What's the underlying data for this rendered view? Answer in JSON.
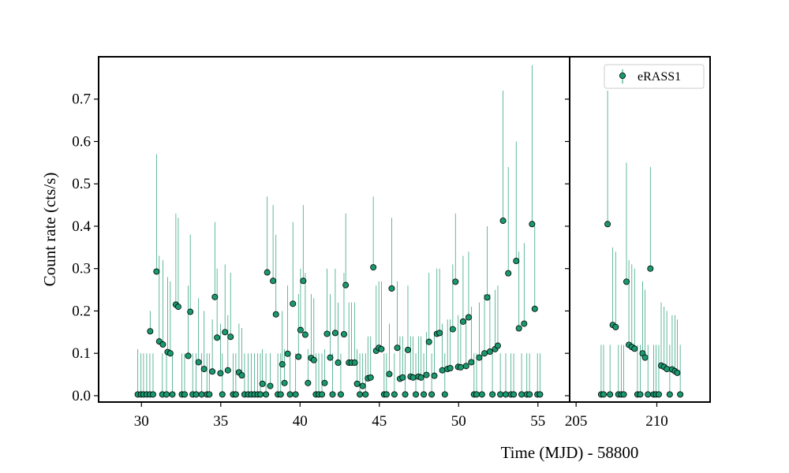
{
  "chart_data": {
    "type": "scatter",
    "ylabel": "Count rate (cts/s)",
    "xlabel": "Time (MJD) - 58800",
    "ylim": [
      -0.015,
      0.8
    ],
    "yticks": [
      0.0,
      0.1,
      0.2,
      0.3,
      0.4,
      0.5,
      0.6,
      0.7
    ],
    "ytick_labels": [
      "0.0",
      "0.1",
      "0.2",
      "0.3",
      "0.4",
      "0.5",
      "0.6",
      "0.7"
    ],
    "legend": {
      "label": "eRASS1",
      "position": "top-right"
    },
    "colors": {
      "marker": "#1a9870",
      "errorbar": "#1a9870",
      "marker_edge": "#000000"
    },
    "panels": [
      {
        "name": "left",
        "xlim": [
          27.3,
          57.0
        ],
        "xticks": [
          30,
          35,
          40,
          45,
          50,
          55
        ],
        "xtick_labels": [
          "30",
          "35",
          "40",
          "45",
          "50",
          "55"
        ],
        "series": [
          {
            "name": "eRASS1",
            "points": [
              [
                29.77,
                0.003,
                0.11
              ],
              [
                29.97,
                0.003,
                0.1
              ],
              [
                30.13,
                0.003,
                0.1
              ],
              [
                30.33,
                0.003,
                0.1
              ],
              [
                30.53,
                0.003,
                0.1
              ],
              [
                30.55,
                0.152,
                0.2
              ],
              [
                30.73,
                0.003,
                0.1
              ],
              [
                30.95,
                0.293,
                0.57
              ],
              [
                31.12,
                0.128,
                0.33
              ],
              [
                31.32,
                0.003,
                0.1
              ],
              [
                31.35,
                0.121,
                0.32
              ],
              [
                31.58,
                0.003,
                0.1
              ],
              [
                31.65,
                0.103,
                0.28
              ],
              [
                31.82,
                0.1,
                0.27
              ],
              [
                31.95,
                0.003,
                0.1
              ],
              [
                32.17,
                0.215,
                0.43
              ],
              [
                32.32,
                0.21,
                0.42
              ],
              [
                32.55,
                0.003,
                0.1
              ],
              [
                32.72,
                0.003,
                0.1
              ],
              [
                32.95,
                0.094,
                0.26
              ],
              [
                33.08,
                0.198,
                0.38
              ],
              [
                33.23,
                0.003,
                0.1
              ],
              [
                33.45,
                0.003,
                0.1
              ],
              [
                33.6,
                0.079,
                0.23
              ],
              [
                33.8,
                0.003,
                0.1
              ],
              [
                33.95,
                0.063,
                0.2
              ],
              [
                34.13,
                0.003,
                0.1
              ],
              [
                34.28,
                0.003,
                0.1
              ],
              [
                34.47,
                0.057,
                0.18
              ],
              [
                34.63,
                0.233,
                0.41
              ],
              [
                34.77,
                0.137,
                0.3
              ],
              [
                34.98,
                0.053,
                0.17
              ],
              [
                35.1,
                0.003,
                0.1
              ],
              [
                35.27,
                0.15,
                0.31
              ],
              [
                35.45,
                0.06,
                0.19
              ],
              [
                35.62,
                0.139,
                0.29
              ],
              [
                35.78,
                0.003,
                0.1
              ],
              [
                35.95,
                0.003,
                0.1
              ],
              [
                36.15,
                0.055,
                0.17
              ],
              [
                36.33,
                0.048,
                0.16
              ],
              [
                36.5,
                0.003,
                0.1
              ],
              [
                36.73,
                0.003,
                0.1
              ],
              [
                36.93,
                0.003,
                0.1
              ],
              [
                37.13,
                0.003,
                0.1
              ],
              [
                37.33,
                0.003,
                0.1
              ],
              [
                37.5,
                0.003,
                0.1
              ],
              [
                37.63,
                0.028,
                0.11
              ],
              [
                37.85,
                0.003,
                0.1
              ],
              [
                37.93,
                0.291,
                0.47
              ],
              [
                38.12,
                0.023,
                0.1
              ],
              [
                38.3,
                0.271,
                0.45
              ],
              [
                38.48,
                0.192,
                0.38
              ],
              [
                38.6,
                0.003,
                0.1
              ],
              [
                38.78,
                0.003,
                0.1
              ],
              [
                38.88,
                0.074,
                0.2
              ],
              [
                39.02,
                0.03,
                0.11
              ],
              [
                39.22,
                0.099,
                0.26
              ],
              [
                39.37,
                0.003,
                0.1
              ],
              [
                39.55,
                0.217,
                0.41
              ],
              [
                39.72,
                0.003,
                0.1
              ],
              [
                39.9,
                0.092,
                0.24
              ],
              [
                40.03,
                0.155,
                0.3
              ],
              [
                40.2,
                0.271,
                0.45
              ],
              [
                40.33,
                0.144,
                0.29
              ],
              [
                40.5,
                0.03,
                0.11
              ],
              [
                40.7,
                0.089,
                0.24
              ],
              [
                40.87,
                0.084,
                0.23
              ],
              [
                41.0,
                0.003,
                0.1
              ],
              [
                41.18,
                0.003,
                0.1
              ],
              [
                41.38,
                0.003,
                0.1
              ],
              [
                41.55,
                0.03,
                0.11
              ],
              [
                41.7,
                0.146,
                0.3
              ],
              [
                41.9,
                0.09,
                0.24
              ],
              [
                42.05,
                0.003,
                0.1
              ],
              [
                42.22,
                0.148,
                0.3
              ],
              [
                42.4,
                0.078,
                0.22
              ],
              [
                42.57,
                0.003,
                0.1
              ],
              [
                42.77,
                0.145,
                0.29
              ],
              [
                42.88,
                0.261,
                0.43
              ],
              [
                43.08,
                0.078,
                0.22
              ],
              [
                43.25,
                0.078,
                0.22
              ],
              [
                43.45,
                0.078,
                0.22
              ],
              [
                43.6,
                0.028,
                0.11
              ],
              [
                43.77,
                0.003,
                0.1
              ],
              [
                43.95,
                0.023,
                0.1
              ],
              [
                44.13,
                0.003,
                0.1
              ],
              [
                44.28,
                0.041,
                0.14
              ],
              [
                44.45,
                0.043,
                0.14
              ],
              [
                44.62,
                0.303,
                0.47
              ],
              [
                44.8,
                0.106,
                0.26
              ],
              [
                44.97,
                0.113,
                0.27
              ],
              [
                45.13,
                0.11,
                0.27
              ],
              [
                45.3,
                0.003,
                0.1
              ],
              [
                45.45,
                0.003,
                0.1
              ],
              [
                45.63,
                0.051,
                0.17
              ],
              [
                45.78,
                0.253,
                0.42
              ],
              [
                45.95,
                0.003,
                0.1
              ],
              [
                46.13,
                0.113,
                0.27
              ],
              [
                46.3,
                0.04,
                0.14
              ],
              [
                46.47,
                0.043,
                0.14
              ],
              [
                46.63,
                0.003,
                0.1
              ],
              [
                46.8,
                0.108,
                0.26
              ],
              [
                46.97,
                0.045,
                0.14
              ],
              [
                47.13,
                0.043,
                0.14
              ],
              [
                47.3,
                0.003,
                0.1
              ],
              [
                47.47,
                0.045,
                0.14
              ],
              [
                47.63,
                0.043,
                0.14
              ],
              [
                47.8,
                0.003,
                0.1
              ],
              [
                47.97,
                0.049,
                0.15
              ],
              [
                48.13,
                0.127,
                0.29
              ],
              [
                48.3,
                0.003,
                0.1
              ],
              [
                48.47,
                0.047,
                0.15
              ],
              [
                48.63,
                0.146,
                0.3
              ],
              [
                48.8,
                0.148,
                0.3
              ],
              [
                48.97,
                0.06,
                0.17
              ],
              [
                49.13,
                0.003,
                0.1
              ],
              [
                49.3,
                0.063,
                0.18
              ],
              [
                49.47,
                0.065,
                0.18
              ],
              [
                49.63,
                0.157,
                0.31
              ],
              [
                49.8,
                0.269,
                0.43
              ],
              [
                49.97,
                0.068,
                0.19
              ],
              [
                50.13,
                0.067,
                0.18
              ],
              [
                50.28,
                0.175,
                0.33
              ],
              [
                50.47,
                0.07,
                0.19
              ],
              [
                50.63,
                0.185,
                0.34
              ],
              [
                50.8,
                0.079,
                0.21
              ],
              [
                50.97,
                0.003,
                0.1
              ],
              [
                51.13,
                0.003,
                0.1
              ],
              [
                51.3,
                0.09,
                0.22
              ],
              [
                51.47,
                0.003,
                0.1
              ],
              [
                51.63,
                0.1,
                0.24
              ],
              [
                51.8,
                0.232,
                0.4
              ],
              [
                51.97,
                0.104,
                0.24
              ],
              [
                52.13,
                0.003,
                0.1
              ],
              [
                52.3,
                0.11,
                0.25
              ],
              [
                52.47,
                0.118,
                0.26
              ],
              [
                52.63,
                0.003,
                0.1
              ],
              [
                52.8,
                0.413,
                0.72
              ],
              [
                52.97,
                0.003,
                0.1
              ],
              [
                53.13,
                0.289,
                0.54
              ],
              [
                53.3,
                0.003,
                0.1
              ],
              [
                53.47,
                0.003,
                0.1
              ],
              [
                53.63,
                0.318,
                0.6
              ],
              [
                53.8,
                0.159,
                0.34
              ],
              [
                53.97,
                0.003,
                0.1
              ],
              [
                54.13,
                0.17,
                0.36
              ],
              [
                54.3,
                0.003,
                0.1
              ],
              [
                54.47,
                0.003,
                0.1
              ],
              [
                54.63,
                0.405,
                0.78
              ],
              [
                54.8,
                0.205,
                0.4
              ],
              [
                54.97,
                0.003,
                0.1
              ],
              [
                55.13,
                0.003,
                0.1
              ]
            ]
          }
        ]
      },
      {
        "name": "right",
        "xlim": [
          204.6,
          213.3
        ],
        "xticks": [
          205,
          210
        ],
        "xtick_labels": [
          "205",
          "210"
        ],
        "series": [
          {
            "name": "eRASS1",
            "points": [
              [
                206.55,
                0.003,
                0.12
              ],
              [
                206.7,
                0.003,
                0.12
              ],
              [
                206.95,
                0.405,
                0.72
              ],
              [
                207.1,
                0.003,
                0.12
              ],
              [
                207.27,
                0.167,
                0.35
              ],
              [
                207.45,
                0.162,
                0.34
              ],
              [
                207.62,
                0.003,
                0.12
              ],
              [
                207.8,
                0.003,
                0.12
              ],
              [
                207.95,
                0.003,
                0.12
              ],
              [
                208.12,
                0.269,
                0.55
              ],
              [
                208.27,
                0.12,
                0.32
              ],
              [
                208.45,
                0.115,
                0.31
              ],
              [
                208.62,
                0.111,
                0.3
              ],
              [
                208.8,
                0.003,
                0.12
              ],
              [
                208.97,
                0.003,
                0.12
              ],
              [
                209.12,
                0.1,
                0.27
              ],
              [
                209.27,
                0.09,
                0.25
              ],
              [
                209.45,
                0.003,
                0.12
              ],
              [
                209.6,
                0.3,
                0.54
              ],
              [
                209.8,
                0.003,
                0.12
              ],
              [
                209.95,
                0.003,
                0.12
              ],
              [
                210.12,
                0.003,
                0.12
              ],
              [
                210.27,
                0.071,
                0.22
              ],
              [
                210.45,
                0.068,
                0.21
              ],
              [
                210.62,
                0.063,
                0.2
              ],
              [
                210.8,
                0.003,
                0.12
              ],
              [
                210.95,
                0.062,
                0.19
              ],
              [
                211.12,
                0.058,
                0.19
              ],
              [
                211.27,
                0.054,
                0.18
              ],
              [
                211.45,
                0.003,
                0.12
              ]
            ]
          }
        ]
      }
    ]
  }
}
